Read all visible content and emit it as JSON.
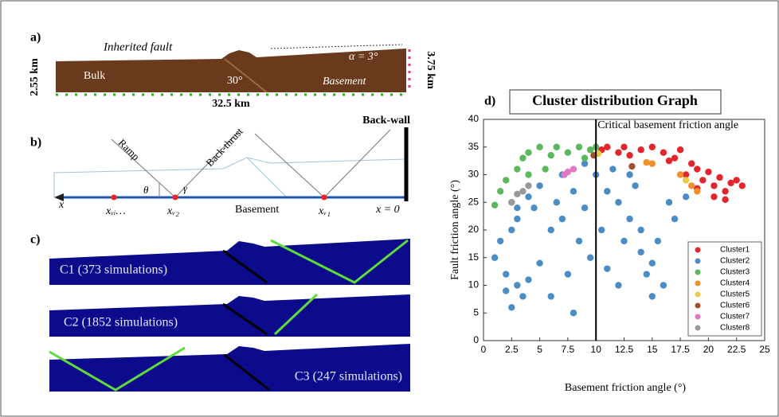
{
  "panel_a": {
    "letter": "a)",
    "inherited_fault": "Inherited fault",
    "bulk": "Bulk",
    "angle": "30°",
    "basement": "Basement",
    "dip": "α = 3°",
    "left_thickness": "2.55 km",
    "right_thickness": "3.75 km",
    "length": "32.5 km"
  },
  "panel_b": {
    "letter": "b)",
    "back_wall": "Back-wall",
    "ramp": "Ramp",
    "back_thrust": "Back-thrust",
    "theta": "θ",
    "gamma": "γ",
    "x_axis": "x",
    "x_vi": "xᵥᵢ…",
    "x_v2": "xᵥ₂",
    "basement": "Basement",
    "x_v1": "xᵥ₁",
    "origin": "x = 0"
  },
  "panel_c": {
    "letter": "c)",
    "clusters": [
      "C1 (373 simulations)",
      "C2 (1852 simulations)",
      "C3 (247 simulations)"
    ]
  },
  "chart_data": {
    "type": "scatter",
    "letter": "d)",
    "title": "Cluster distribution Graph",
    "x_label": "Basement friction angle (°)",
    "y_label": "Fault friction angle (°)",
    "xlim": [
      0,
      25
    ],
    "ylim": [
      0,
      40
    ],
    "xticks": [
      0,
      2.5,
      5,
      7.5,
      10,
      12.5,
      15,
      17.5,
      20,
      22.5,
      25
    ],
    "yticks": [
      0,
      5,
      10,
      15,
      20,
      25,
      30,
      35,
      40
    ],
    "annotations": [
      {
        "text": "Critical basement friction angle",
        "x": 10
      }
    ],
    "legend": "lower right",
    "series": [
      {
        "name": "Cluster1",
        "color": "#e3262b",
        "x": [
          10.5,
          11,
          12,
          12.5,
          13,
          14,
          15,
          16,
          17,
          17.5,
          18.5,
          19,
          19.5,
          20,
          20.5,
          21,
          21.5,
          22,
          22.5,
          20.5,
          21.5,
          19,
          18,
          16.5,
          23
        ],
        "values": [
          34.5,
          35,
          34,
          35,
          33.5,
          34.5,
          35,
          34,
          33,
          34.5,
          32,
          31,
          29,
          30.5,
          28,
          29.5,
          27,
          28.5,
          29,
          26,
          25.5,
          27.5,
          30,
          32.5,
          28
        ]
      },
      {
        "name": "Cluster2",
        "color": "#4a8cc6",
        "x": [
          2.5,
          3,
          1.5,
          2,
          3,
          3.5,
          2,
          4,
          2.5,
          1,
          5,
          6,
          6.5,
          7,
          8,
          8.5,
          9,
          7.5,
          6,
          8,
          9.5,
          10.5,
          11,
          11.5,
          12,
          12.5,
          13,
          13.5,
          14,
          14.5,
          15,
          15.5,
          16,
          15,
          14,
          16.5,
          17,
          18,
          10,
          9,
          7,
          5,
          4,
          12,
          11,
          4.5,
          3,
          13
        ],
        "values": [
          20,
          22,
          18,
          12,
          10,
          8,
          9,
          11,
          6,
          15,
          14,
          20,
          25,
          22,
          27,
          18,
          24,
          12,
          8,
          5,
          15,
          20,
          27,
          31,
          25,
          18,
          22,
          28,
          16,
          12,
          14,
          18,
          10,
          8,
          20,
          25,
          22,
          26,
          30,
          32,
          30,
          28,
          26,
          10,
          13,
          24,
          24,
          30
        ]
      },
      {
        "name": "Cluster3",
        "color": "#5cb85c",
        "x": [
          1.5,
          1,
          2,
          2.5,
          3,
          3.5,
          4,
          5,
          6,
          6.5,
          7.5,
          8.5,
          9,
          9.5,
          10,
          5.5,
          4
        ],
        "values": [
          27,
          24.5,
          29,
          25,
          31,
          33,
          34,
          35,
          33.5,
          35,
          34,
          35,
          33,
          34.5,
          35,
          31,
          30
        ]
      },
      {
        "name": "Cluster4",
        "color": "#f28e2b",
        "x": [
          14.5,
          15,
          17.5,
          18.5,
          19
        ],
        "values": [
          32.2,
          32,
          30,
          28,
          27
        ]
      },
      {
        "name": "Cluster5",
        "color": "#edc948",
        "x": [
          18,
          10.2
        ],
        "values": [
          29,
          33.8
        ]
      },
      {
        "name": "Cluster6",
        "color": "#a0522d",
        "x": [
          9.8,
          13.2
        ],
        "values": [
          33.5,
          31.5
        ]
      },
      {
        "name": "Cluster7",
        "color": "#e377c2",
        "x": [
          7.2,
          7.5,
          8
        ],
        "values": [
          30,
          30.5,
          31
        ]
      },
      {
        "name": "Cluster8",
        "color": "#999999",
        "x": [
          2.5,
          3,
          3.5,
          4
        ],
        "values": [
          25,
          26.5,
          27,
          28
        ]
      }
    ]
  }
}
